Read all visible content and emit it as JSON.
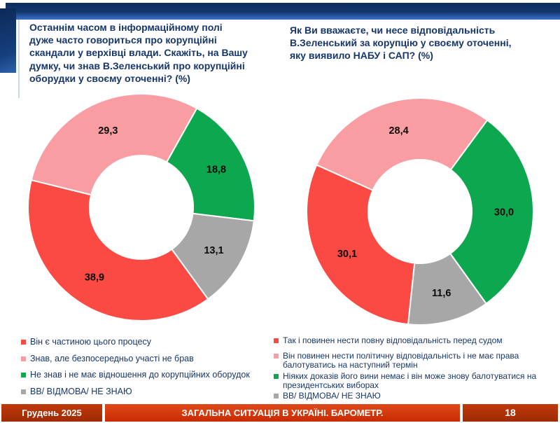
{
  "footer": {
    "date": "Грудень 2025",
    "title": "ЗАГАЛЬНА СИТУАЦІЯ В УКРАЇНІ. БАРОМЕТР.",
    "page": "18"
  },
  "colors": {
    "accent_navy": "#14376f",
    "accent_blue": "#2a5fae",
    "question_text": "#17366b",
    "footer_red": "#c72c00",
    "footer_dark_red": "#9e2b02",
    "slice_red": "#fb4a44",
    "slice_pink": "#f99da2",
    "slice_green": "#0ca74f",
    "slice_gray": "#a7a7a7"
  },
  "chart_data": [
    {
      "type": "pie",
      "subtype": "donut",
      "title": "Останнім часом в інформаційному полі\nдуже часто говориться про корупційні\nскандали у верхівці влади. Скажіть, на Вашу\nдумку, чи знав В.Зеленський про корупційні\nоборудки у своєму оточенні? (%)",
      "legend_position": "bottom",
      "rotation_deg": 144,
      "units": "%",
      "slices": [
        {
          "label": "Він є частиною цього процесу",
          "value": 38.9,
          "display": "38,9",
          "color": "#fb4a44"
        },
        {
          "label": "Знав, але безпосередньо участі не брав",
          "value": 29.3,
          "display": "29,3",
          "color": "#f99da2"
        },
        {
          "label": "Не знав і не має відношення до корупційних оборудок",
          "value": 18.8,
          "display": "18,8",
          "color": "#0ca74f"
        },
        {
          "label": "ВВ/ ВІДМОВА/ НЕ ЗНАЮ",
          "value": 13.1,
          "display": "13,1",
          "color": "#a7a7a7"
        }
      ]
    },
    {
      "type": "pie",
      "subtype": "donut",
      "title": "Як Ви вважаєте, чи несе відповідальність\nВ.Зеленський за корупцію у своєму оточенні,\nяку виявило НАБУ і САП? (%)",
      "legend_position": "bottom",
      "rotation_deg": 186,
      "units": "%",
      "slices": [
        {
          "label": "Так і повинен нести повну відповідальність перед судом",
          "value": 30.1,
          "display": "30,1",
          "color": "#fb4a44"
        },
        {
          "label": "Він повинен нести політичну відповідальність і не має права балотуватись на наступний термін",
          "value": 28.4,
          "display": "28,4",
          "color": "#f99da2"
        },
        {
          "label": "Ніяких доказів його вини немає і він може знову балотуватися на президентських виборах",
          "value": 30.0,
          "display": "30,0",
          "color": "#0ca74f"
        },
        {
          "label": "ВВ/ ВІДМОВА/ НЕ ЗНАЮ",
          "value": 11.6,
          "display": "11,6",
          "color": "#a7a7a7"
        }
      ]
    }
  ]
}
